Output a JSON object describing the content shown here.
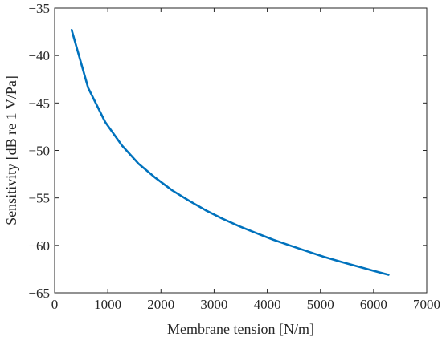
{
  "chart_data": {
    "type": "line",
    "title": "",
    "xlabel": "Membrane tension [N/m]",
    "ylabel": "Sensitivity [dB re 1 V/Pa]",
    "xlim": [
      0,
      7000
    ],
    "ylim": [
      -65,
      -35
    ],
    "x_ticks": [
      0,
      1000,
      2000,
      3000,
      4000,
      5000,
      6000,
      7000
    ],
    "y_ticks": [
      -35,
      -40,
      -45,
      -50,
      -55,
      -60,
      -65
    ],
    "x_tick_labels": [
      "0",
      "1000",
      "2000",
      "3000",
      "4000",
      "5000",
      "6000",
      "7000"
    ],
    "y_tick_labels": [
      "−35",
      "−40",
      "−45",
      "−50",
      "−55",
      "−60",
      "−65"
    ],
    "grid": false,
    "series": [
      {
        "color": "#0072BD",
        "x": [
          320,
          630,
          950,
          1270,
          1580,
          1900,
          2210,
          2530,
          2840,
          3160,
          3480,
          3790,
          4110,
          4420,
          4740,
          5060,
          5370,
          5690,
          6010,
          6280
        ],
        "y": [
          -37.3,
          -43.4,
          -47.0,
          -49.5,
          -51.4,
          -52.9,
          -54.2,
          -55.3,
          -56.3,
          -57.2,
          -58.0,
          -58.7,
          -59.4,
          -60.0,
          -60.6,
          -61.2,
          -61.7,
          -62.2,
          -62.7,
          -63.1
        ]
      }
    ]
  }
}
